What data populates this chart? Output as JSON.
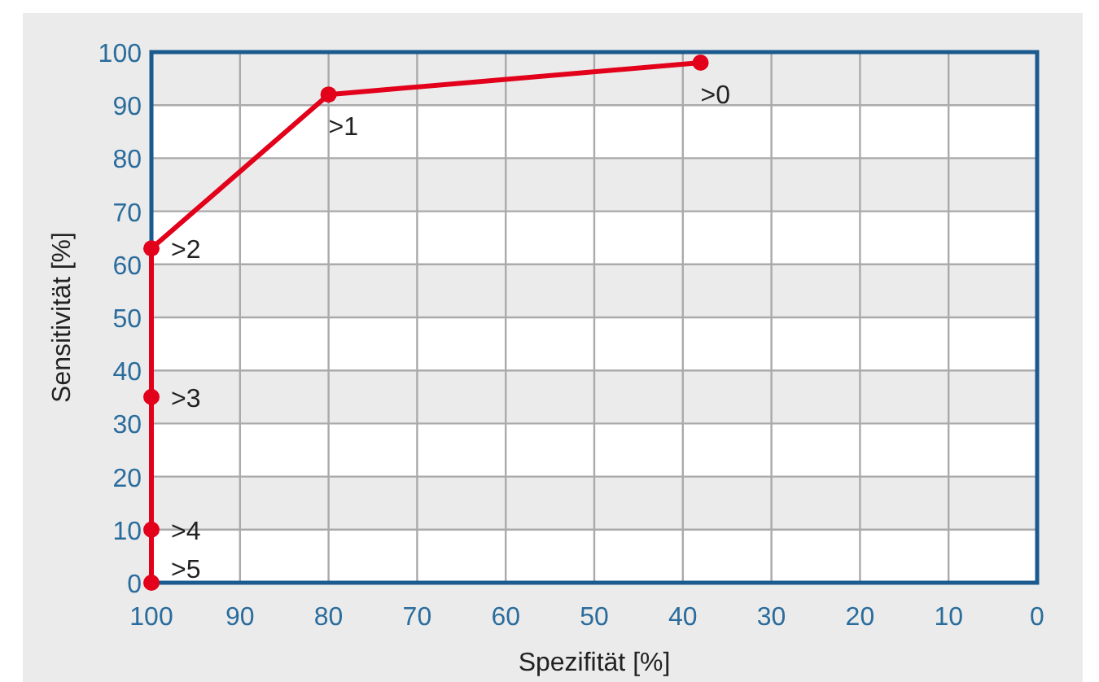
{
  "chart_data": {
    "type": "line",
    "xlabel": "Spezifität [%]",
    "ylabel": "Sensitivität [%]",
    "x": [
      100,
      100,
      100,
      100,
      80,
      38
    ],
    "series": [
      {
        "color": "#e2001a",
        "values": [
          0,
          10,
          35,
          63,
          92,
          98
        ]
      }
    ],
    "marker": "circle",
    "line_style": "solid",
    "grid": true,
    "xlim": [
      100,
      0
    ],
    "xticks": [
      100,
      90,
      80,
      70,
      60,
      50,
      40,
      30,
      20,
      10,
      0
    ],
    "ylim": [
      0,
      100
    ],
    "yticks": [
      0,
      10,
      20,
      30,
      40,
      50,
      60,
      70,
      80,
      90,
      100
    ],
    "annotations": [
      {
        "text": ">5",
        "x": 100,
        "y": 0
      },
      {
        "text": ">4",
        "x": 100,
        "y": 10
      },
      {
        "text": ">3",
        "x": 100,
        "y": 35
      },
      {
        "text": ">2",
        "x": 100,
        "y": 63
      },
      {
        "text": ">1",
        "x": 80,
        "y": 92
      },
      {
        "text": ">0",
        "x": 38,
        "y": 98
      }
    ]
  }
}
